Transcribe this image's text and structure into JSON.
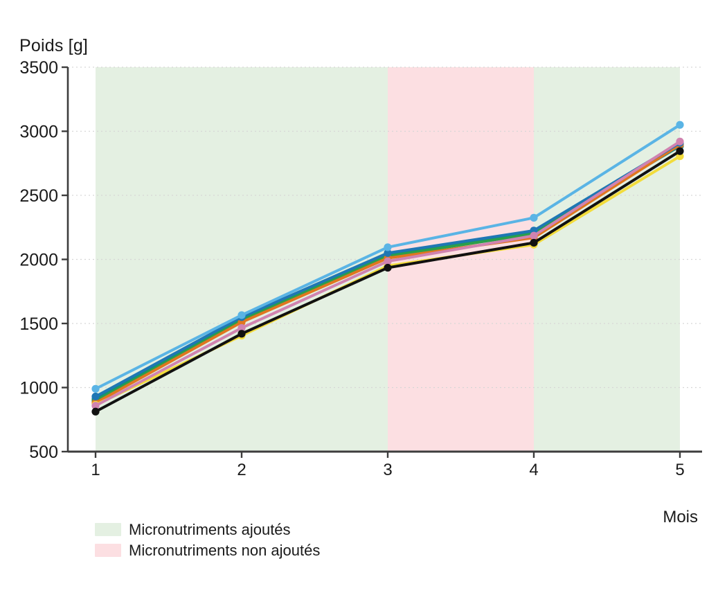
{
  "chart": {
    "title": "Poids [g]",
    "x_axis_label": "Mois"
  },
  "legend": {
    "items": [
      {
        "label": "Micronutriments ajoutés",
        "color": "#e4f0e2"
      },
      {
        "label": "Micronutriments non ajoutés",
        "color": "#fcdfe2"
      }
    ]
  },
  "chart_data": {
    "type": "line",
    "title": "Poids [g]",
    "xlabel": "Mois",
    "ylabel": "Poids [g]",
    "x": [
      1,
      2,
      3,
      4,
      5
    ],
    "xticks": [
      "1",
      "2",
      "3",
      "4",
      "5"
    ],
    "ylim": [
      500,
      3500
    ],
    "yticks": [
      500,
      1000,
      1500,
      2000,
      2500,
      3000,
      3500
    ],
    "grid": "horizontal-dashed",
    "grid_color": "#d6d6d6",
    "axis_color": "#3d3d3d",
    "legend_position": "bottom-left",
    "bands": [
      {
        "label": "Micronutriments ajoutés",
        "from": 1,
        "to": 3,
        "color": "#e4f0e2"
      },
      {
        "label": "Micronutriments non ajoutés",
        "from": 3,
        "to": 4,
        "color": "#fcdfe2"
      },
      {
        "label": "Micronutriments ajoutés",
        "from": 4,
        "to": 5,
        "color": "#e4f0e2"
      }
    ],
    "series": [
      {
        "name": "teal",
        "color": "#0f8b84",
        "values": [
          910,
          1540,
          2035,
          2210,
          2885
        ]
      },
      {
        "name": "green",
        "color": "#2c9e4b",
        "values": [
          895,
          1525,
          2025,
          2200,
          2900
        ]
      },
      {
        "name": "orange",
        "color": "#e0761f",
        "values": [
          880,
          1510,
          2010,
          2170,
          2895
        ]
      },
      {
        "name": "blue",
        "color": "#1f77b4",
        "values": [
          930,
          1550,
          2050,
          2225,
          2910
        ]
      },
      {
        "name": "yellow",
        "color": "#f2dc3c",
        "values": [
          865,
          1405,
          1950,
          2115,
          2805
        ]
      },
      {
        "name": "pink",
        "color": "#d083b0",
        "values": [
          858,
          1465,
          1985,
          2185,
          2920
        ]
      },
      {
        "name": "black",
        "color": "#111111",
        "values": [
          812,
          1420,
          1935,
          2130,
          2845
        ]
      },
      {
        "name": "skyblue",
        "color": "#5ab4e5",
        "values": [
          990,
          1565,
          2095,
          2325,
          3050
        ]
      }
    ]
  }
}
